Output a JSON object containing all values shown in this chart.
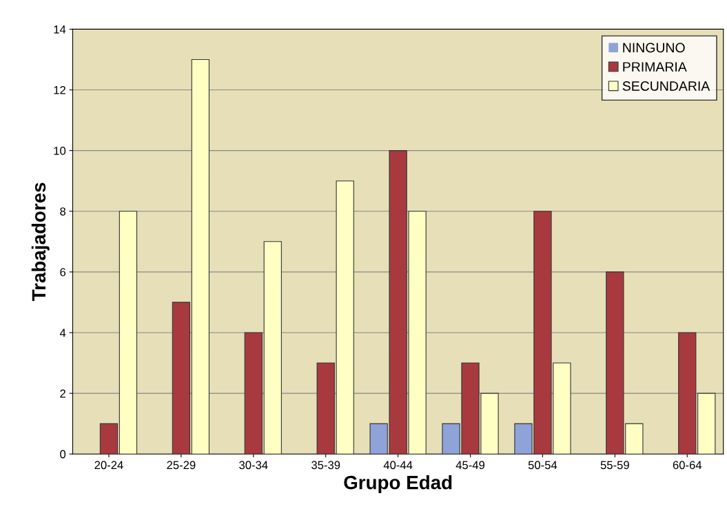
{
  "chart_data": {
    "type": "bar",
    "xlabel": "Grupo Edad",
    "ylabel": "Trabajadores",
    "categories": [
      "20-24",
      "25-29",
      "30-34",
      "35-39",
      "40-44",
      "45-49",
      "50-54",
      "55-59",
      "60-64"
    ],
    "series": [
      {
        "name": "NINGUNO",
        "color": "#8fa3d9",
        "values": [
          0,
          0,
          0,
          0,
          1,
          1,
          1,
          0,
          0
        ]
      },
      {
        "name": "PRIMARIA",
        "color": "#a83a3f",
        "values": [
          1,
          5,
          4,
          3,
          10,
          3,
          8,
          6,
          4
        ]
      },
      {
        "name": "SECUNDARIA",
        "color": "#ffffc4",
        "values": [
          8,
          13,
          7,
          9,
          8,
          2,
          3,
          1,
          2
        ]
      }
    ],
    "ylim": [
      0,
      14
    ],
    "yticks": [
      0,
      2,
      4,
      6,
      8,
      10,
      12,
      14
    ],
    "grid": "y",
    "legend": "top right"
  }
}
